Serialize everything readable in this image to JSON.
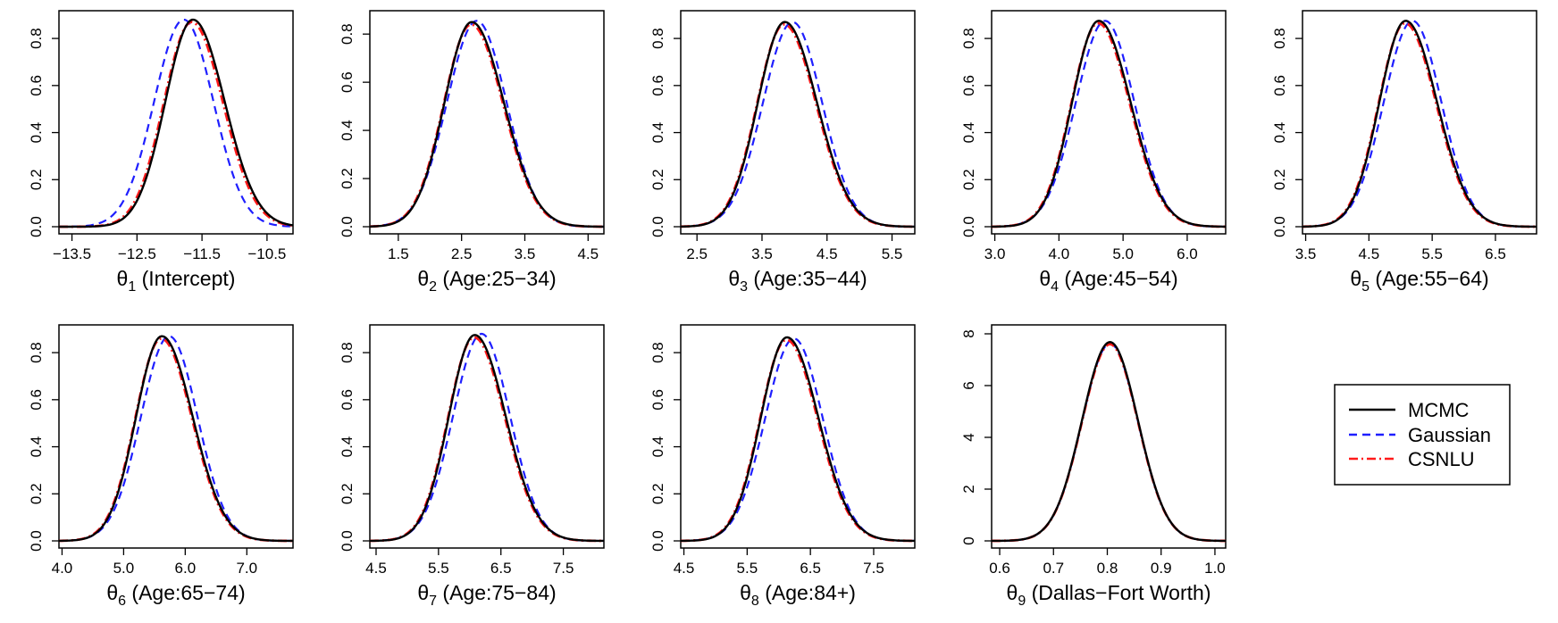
{
  "legend": {
    "items": [
      {
        "label": "MCMC",
        "color": "#000000",
        "style": "solid"
      },
      {
        "label": "Gaussian",
        "color": "#1f1fff",
        "style": "dashed"
      },
      {
        "label": "CSNLU",
        "color": "#ff1a1a",
        "style": "dotdash"
      }
    ]
  },
  "chart_data": [
    {
      "type": "line",
      "symbol": "θ",
      "sub": "1",
      "label_rest": " (Intercept)",
      "xlim": [
        -13.7,
        -10.1
      ],
      "ylim": [
        0,
        0.88
      ],
      "xticks": [
        -13.5,
        -12.5,
        -11.5,
        -10.5
      ],
      "xtick_labels": [
        "−13.5",
        "−12.5",
        "−11.5",
        "−10.5"
      ],
      "yticks": [
        0,
        0.2,
        0.4,
        0.6,
        0.8
      ],
      "ytick_labels": [
        "0.0",
        "0.2",
        "0.4",
        "0.6",
        "0.8"
      ],
      "series": [
        {
          "name": "MCMC",
          "mean": -11.64,
          "sd": 0.455,
          "peak": 0.88,
          "skew": 0.12
        },
        {
          "name": "Gaussian",
          "mean": -11.78,
          "sd": 0.455,
          "peak": 0.88,
          "skew": 0
        },
        {
          "name": "CSNLU",
          "mean": -11.66,
          "sd": 0.455,
          "peak": 0.87,
          "skew": 0.1
        }
      ]
    },
    {
      "type": "line",
      "symbol": "θ",
      "sub": "2",
      "label_rest": " (Age:25−34)",
      "xlim": [
        1.05,
        4.75
      ],
      "ylim": [
        0,
        0.86
      ],
      "xticks": [
        1.5,
        2.5,
        3.5,
        4.5
      ],
      "xtick_labels": [
        "1.5",
        "2.5",
        "3.5",
        "4.5"
      ],
      "yticks": [
        0,
        0.2,
        0.4,
        0.6,
        0.8
      ],
      "ytick_labels": [
        "0.0",
        "0.2",
        "0.4",
        "0.6",
        "0.8"
      ],
      "series": [
        {
          "name": "MCMC",
          "mean": 2.66,
          "sd": 0.47,
          "peak": 0.85,
          "skew": 0.14
        },
        {
          "name": "Gaussian",
          "mean": 2.74,
          "sd": 0.47,
          "peak": 0.855,
          "skew": 0
        },
        {
          "name": "CSNLU",
          "mean": 2.65,
          "sd": 0.47,
          "peak": 0.84,
          "skew": 0.13
        }
      ]
    },
    {
      "type": "line",
      "symbol": "θ",
      "sub": "3",
      "label_rest": " (Age:35−44)",
      "xlim": [
        2.25,
        5.85
      ],
      "ylim": [
        0,
        0.88
      ],
      "xticks": [
        2.5,
        3.5,
        4.5,
        5.5
      ],
      "xtick_labels": [
        "2.5",
        "3.5",
        "4.5",
        "5.5"
      ],
      "yticks": [
        0,
        0.2,
        0.4,
        0.6,
        0.8
      ],
      "ytick_labels": [
        "0.0",
        "0.2",
        "0.4",
        "0.6",
        "0.8"
      ],
      "series": [
        {
          "name": "MCMC",
          "mean": 3.85,
          "sd": 0.455,
          "peak": 0.87,
          "skew": 0.15
        },
        {
          "name": "Gaussian",
          "mean": 3.97,
          "sd": 0.455,
          "peak": 0.87,
          "skew": 0
        },
        {
          "name": "CSNLU",
          "mean": 3.84,
          "sd": 0.455,
          "peak": 0.86,
          "skew": 0.14
        }
      ]
    },
    {
      "type": "line",
      "symbol": "θ",
      "sub": "4",
      "label_rest": " (Age:45−54)",
      "xlim": [
        2.95,
        6.6
      ],
      "ylim": [
        0,
        0.88
      ],
      "xticks": [
        3.0,
        4.0,
        5.0,
        6.0
      ],
      "xtick_labels": [
        "3.0",
        "4.0",
        "5.0",
        "6.0"
      ],
      "yticks": [
        0,
        0.2,
        0.4,
        0.6,
        0.8
      ],
      "ytick_labels": [
        "0.0",
        "0.2",
        "0.4",
        "0.6",
        "0.8"
      ],
      "series": [
        {
          "name": "MCMC",
          "mean": 4.62,
          "sd": 0.455,
          "peak": 0.875,
          "skew": 0.15
        },
        {
          "name": "Gaussian",
          "mean": 4.72,
          "sd": 0.455,
          "peak": 0.875,
          "skew": 0
        },
        {
          "name": "CSNLU",
          "mean": 4.61,
          "sd": 0.455,
          "peak": 0.865,
          "skew": 0.14
        }
      ]
    },
    {
      "type": "line",
      "symbol": "θ",
      "sub": "5",
      "label_rest": " (Age:55−64)",
      "xlim": [
        3.45,
        7.15
      ],
      "ylim": [
        0,
        0.88
      ],
      "xticks": [
        3.5,
        4.5,
        5.5,
        6.5
      ],
      "xtick_labels": [
        "3.5",
        "4.5",
        "5.5",
        "6.5"
      ],
      "yticks": [
        0,
        0.2,
        0.4,
        0.6,
        0.8
      ],
      "ytick_labels": [
        "0.0",
        "0.2",
        "0.4",
        "0.6",
        "0.8"
      ],
      "series": [
        {
          "name": "MCMC",
          "mean": 5.08,
          "sd": 0.455,
          "peak": 0.875,
          "skew": 0.15
        },
        {
          "name": "Gaussian",
          "mean": 5.19,
          "sd": 0.455,
          "peak": 0.875,
          "skew": 0
        },
        {
          "name": "CSNLU",
          "mean": 5.07,
          "sd": 0.455,
          "peak": 0.865,
          "skew": 0.14
        }
      ]
    },
    {
      "type": "line",
      "symbol": "θ",
      "sub": "6",
      "label_rest": " (Age:65−74)",
      "xlim": [
        3.95,
        7.75
      ],
      "ylim": [
        0,
        0.88
      ],
      "xticks": [
        4.0,
        5.0,
        6.0,
        7.0
      ],
      "xtick_labels": [
        "4.0",
        "5.0",
        "6.0",
        "7.0"
      ],
      "yticks": [
        0,
        0.2,
        0.4,
        0.6,
        0.8
      ],
      "ytick_labels": [
        "0.0",
        "0.2",
        "0.4",
        "0.6",
        "0.8"
      ],
      "series": [
        {
          "name": "MCMC",
          "mean": 5.62,
          "sd": 0.46,
          "peak": 0.87,
          "skew": 0.15
        },
        {
          "name": "Gaussian",
          "mean": 5.74,
          "sd": 0.46,
          "peak": 0.87,
          "skew": 0
        },
        {
          "name": "CSNLU",
          "mean": 5.61,
          "sd": 0.46,
          "peak": 0.86,
          "skew": 0.14
        }
      ]
    },
    {
      "type": "line",
      "symbol": "θ",
      "sub": "7",
      "label_rest": " (Age:75−84)",
      "xlim": [
        4.4,
        8.15
      ],
      "ylim": [
        0,
        0.88
      ],
      "xticks": [
        4.5,
        5.5,
        6.5,
        7.5
      ],
      "xtick_labels": [
        "4.5",
        "5.5",
        "6.5",
        "7.5"
      ],
      "yticks": [
        0,
        0.2,
        0.4,
        0.6,
        0.8
      ],
      "ytick_labels": [
        "0.0",
        "0.2",
        "0.4",
        "0.6",
        "0.8"
      ],
      "series": [
        {
          "name": "MCMC",
          "mean": 6.08,
          "sd": 0.455,
          "peak": 0.875,
          "skew": 0.15
        },
        {
          "name": "Gaussian",
          "mean": 6.19,
          "sd": 0.455,
          "peak": 0.88,
          "skew": 0
        },
        {
          "name": "CSNLU",
          "mean": 6.07,
          "sd": 0.455,
          "peak": 0.865,
          "skew": 0.14
        }
      ]
    },
    {
      "type": "line",
      "symbol": "θ",
      "sub": "8",
      "label_rest": " (Age:84+)",
      "xlim": [
        4.45,
        8.15
      ],
      "ylim": [
        0,
        0.88
      ],
      "xticks": [
        4.5,
        5.5,
        6.5,
        7.5
      ],
      "xtick_labels": [
        "4.5",
        "5.5",
        "6.5",
        "7.5"
      ],
      "yticks": [
        0,
        0.2,
        0.4,
        0.6,
        0.8
      ],
      "ytick_labels": [
        "0.0",
        "0.2",
        "0.4",
        "0.6",
        "0.8"
      ],
      "series": [
        {
          "name": "MCMC",
          "mean": 6.13,
          "sd": 0.455,
          "peak": 0.865,
          "skew": 0.15
        },
        {
          "name": "Gaussian",
          "mean": 6.24,
          "sd": 0.455,
          "peak": 0.86,
          "skew": 0
        },
        {
          "name": "CSNLU",
          "mean": 6.12,
          "sd": 0.455,
          "peak": 0.855,
          "skew": 0.14
        }
      ]
    },
    {
      "type": "line",
      "symbol": "θ",
      "sub": "9",
      "label_rest": " (Dallas−Fort Worth)",
      "xlim": [
        0.585,
        1.02
      ],
      "ylim": [
        0,
        8.0
      ],
      "xticks": [
        0.6,
        0.7,
        0.8,
        0.9,
        1.0
      ],
      "xtick_labels": [
        "0.6",
        "0.7",
        "0.8",
        "0.9",
        "1.0"
      ],
      "yticks": [
        0,
        2,
        4,
        6,
        8
      ],
      "ytick_labels": [
        "0",
        "2",
        "4",
        "6",
        "8"
      ],
      "series": [
        {
          "name": "MCMC",
          "mean": 0.805,
          "sd": 0.052,
          "peak": 7.68,
          "skew": 0
        },
        {
          "name": "Gaussian",
          "mean": 0.805,
          "sd": 0.052,
          "peak": 7.62,
          "skew": 0
        },
        {
          "name": "CSNLU",
          "mean": 0.805,
          "sd": 0.052,
          "peak": 7.6,
          "skew": 0
        }
      ]
    }
  ]
}
